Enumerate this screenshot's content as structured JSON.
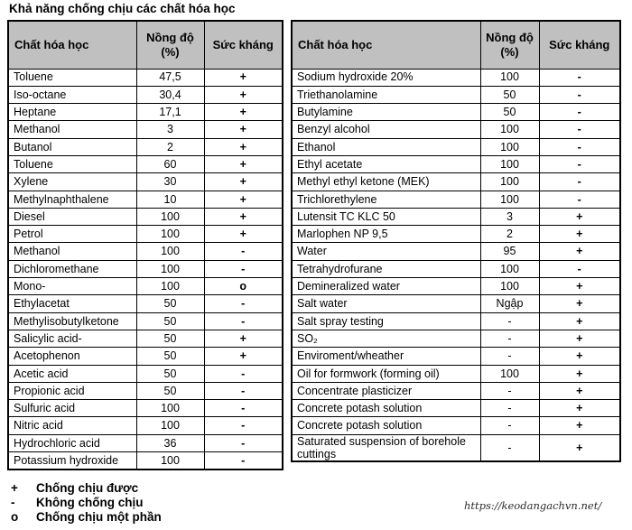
{
  "title": "Khả năng chống chịu các chất hóa học",
  "columns": {
    "chemical": "Chất hóa học",
    "concentration": "Nồng độ (%)",
    "resistance": "Sức kháng"
  },
  "left_table": {
    "rows": [
      [
        "Toluene",
        "47,5",
        "+"
      ],
      [
        "Iso-octane",
        "30,4",
        "+"
      ],
      [
        "Heptane",
        "17,1",
        "+"
      ],
      [
        "Methanol",
        "3",
        "+"
      ],
      [
        "Butanol",
        "2",
        "+"
      ],
      [
        "Toluene",
        "60",
        "+"
      ],
      [
        "Xylene",
        "30",
        "+"
      ],
      [
        "Methylnaphthalene",
        "10",
        "+"
      ],
      [
        "Diesel",
        "100",
        "+"
      ],
      [
        "Petrol",
        "100",
        "+"
      ],
      [
        "Methanol",
        "100",
        "-"
      ],
      [
        "Dichloromethane",
        "100",
        "-"
      ],
      [
        "Mono-",
        "100",
        "o"
      ],
      [
        "Ethylacetat",
        "50",
        "-"
      ],
      [
        "Methylisobutylketone",
        "50",
        "-"
      ],
      [
        "Salicylic acid-",
        "50",
        "+"
      ],
      [
        "Acetophenon",
        "50",
        "+"
      ],
      [
        "Acetic acid",
        "50",
        "-"
      ],
      [
        "Propionic acid",
        "50",
        "-"
      ],
      [
        "Sulfuric acid",
        "100",
        "-"
      ],
      [
        "Nitric acid",
        "100",
        "-"
      ],
      [
        "Hydrochloric acid",
        "36",
        "-"
      ],
      [
        "Potassium hydroxide",
        "100",
        "-"
      ]
    ]
  },
  "right_table": {
    "rows": [
      [
        "Sodium hydroxide 20%",
        "100",
        "-"
      ],
      [
        "Triethanolamine",
        "50",
        "-"
      ],
      [
        "Butylamine",
        "50",
        "-"
      ],
      [
        "Benzyl alcohol",
        "100",
        "-"
      ],
      [
        "Ethanol",
        "100",
        "-"
      ],
      [
        "Ethyl acetate",
        "100",
        "-"
      ],
      [
        "Methyl ethyl ketone (MEK)",
        "100",
        "-"
      ],
      [
        "Trichlorethylene",
        "100",
        "-"
      ],
      [
        "Lutensit TC KLC 50",
        "3",
        "+"
      ],
      [
        "Marlophen NP 9,5",
        "2",
        "+"
      ],
      [
        "Water",
        "95",
        "+"
      ],
      [
        "Tetrahydrofurane",
        "100",
        "-"
      ],
      [
        "Demineralized water",
        "100",
        "+"
      ],
      [
        "Salt water",
        "Ngập",
        "+"
      ],
      [
        "Salt spray testing",
        "-",
        "+"
      ],
      [
        "SO₂",
        "-",
        "+"
      ],
      [
        "Enviroment/wheather",
        "-",
        "+"
      ],
      [
        "Oil for formwork (forming oil)",
        "100",
        "+"
      ],
      [
        "Concentrate plasticizer",
        "-",
        "+"
      ],
      [
        "Concrete potash solution",
        "-",
        "+"
      ],
      [
        "Concrete potash solution",
        "-",
        "+"
      ],
      [
        "Saturated suspension of borehole cuttings",
        "-",
        "+"
      ]
    ]
  },
  "legend": [
    {
      "symbol": "+",
      "label": "Chống chịu được"
    },
    {
      "symbol": "-",
      "label": "Không chống chịu"
    },
    {
      "symbol": "o",
      "label": "Chống chịu một phần"
    }
  ],
  "watermark": "https://keodangachvn.net/",
  "colors": {
    "header_bg": "#c0c0c0",
    "border": "#000000",
    "text": "#000000"
  }
}
